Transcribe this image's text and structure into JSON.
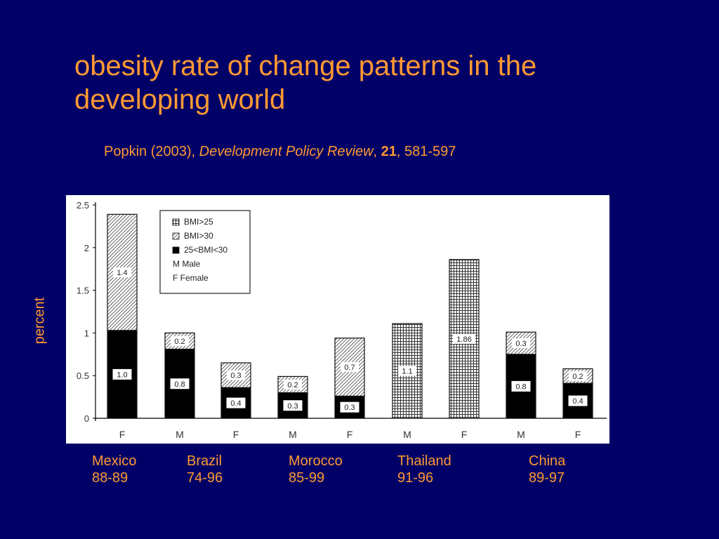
{
  "slide": {
    "title": "obesity rate of change patterns in the developing world",
    "citation": {
      "authors": "Popkin (2003), ",
      "journal": "Development Policy Review",
      "sep1": ", ",
      "volume": "21",
      "pages": ", 581-597"
    },
    "y_axis_label": "percent",
    "countries": [
      {
        "name": "Mexico",
        "years": "88-89"
      },
      {
        "name": "Brazil",
        "years": "74-96"
      },
      {
        "name": "Morocco",
        "years": "85-99"
      },
      {
        "name": "Thailand",
        "years": "91-96"
      },
      {
        "name": "China",
        "years": "89-97"
      }
    ]
  },
  "chart_data": {
    "type": "bar",
    "stacked": true,
    "ylim": [
      0,
      2.5
    ],
    "yticks": [
      "0",
      "0.5",
      "1",
      "1.5",
      "2",
      "2.5"
    ],
    "categories": [
      "F",
      "M",
      "F",
      "M",
      "F",
      "M",
      "F",
      "M",
      "F"
    ],
    "legend": {
      "placement": "top-left",
      "items": [
        "BMI>25",
        "BMI>30",
        "25<BMI<30",
        "M  Male",
        "F  Female"
      ]
    },
    "series": [
      {
        "name": "25<BMI<30",
        "values": [
          1.03,
          0.81,
          0.36,
          0.3,
          0.26,
          null,
          null,
          0.75,
          0.41
        ],
        "labels": [
          "1.0",
          "0.8",
          "0.4",
          "0.3",
          "0.3",
          "",
          "",
          "0.8",
          "0.4"
        ]
      },
      {
        "name": "BMI>30",
        "values": [
          1.36,
          0.19,
          0.29,
          0.19,
          0.68,
          null,
          null,
          0.26,
          0.17
        ],
        "labels": [
          "1.4",
          "0.2",
          "0.3",
          "0.2",
          "0.7",
          "",
          "",
          "0.3",
          "0.2"
        ]
      },
      {
        "name": "BMI>25",
        "values": [
          null,
          null,
          null,
          null,
          null,
          1.11,
          1.86,
          null,
          null
        ],
        "labels": [
          "",
          "",
          "",
          "",
          "",
          "1.1",
          "1.86",
          "",
          ""
        ]
      }
    ],
    "grid": false
  }
}
